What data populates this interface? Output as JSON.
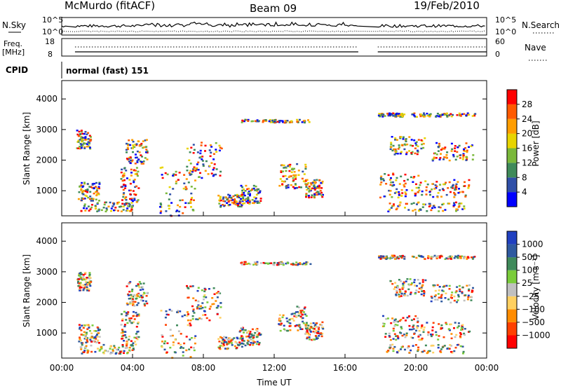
{
  "header": {
    "station": "McMurdo (fitACF)",
    "beam": "Beam 09",
    "date": "19/Feb/2010"
  },
  "status_strips": {
    "nsky_label": "N.Sky",
    "nsky_ticks": [
      "10^5",
      "10^0"
    ],
    "nsearch_label": "N.Search",
    "nsearch_ticks": [
      "10^5",
      "10^0"
    ],
    "freq_label": "Freq.",
    "freq_unit": "[MHz]",
    "freq_ticks": [
      "18",
      "8"
    ],
    "nave_label": "Nave",
    "nave_ticks": [
      "60",
      "0"
    ],
    "cpid_label": "CPID",
    "cpid_text": "normal (fast) 151"
  },
  "colors": {
    "power_scale": [
      "#0000ff",
      "#2f4fa8",
      "#3f8a5a",
      "#7ab83a",
      "#e8d400",
      "#ff9d00",
      "#ff5a00",
      "#ff0000"
    ],
    "velocity_scale": [
      "#2040c0",
      "#2f5aa0",
      "#3f8a5a",
      "#7acc3a",
      "#c0c0c0",
      "#ffd060",
      "#ff8c00",
      "#ff4000",
      "#ff0000"
    ]
  },
  "chart_data": [
    {
      "type": "heatmap",
      "panel": "power",
      "ylabel": "Slant Range [km]",
      "yticks": [
        1000,
        2000,
        3000,
        4000
      ],
      "ylim": [
        180,
        4600
      ],
      "xlim_hours": [
        0,
        24
      ],
      "data_gaps_hours": [
        [
          0.3,
          0.75
        ],
        [
          16.75,
          17.85
        ]
      ],
      "colorbar": {
        "label": "Power [dB]",
        "ticks": [
          "4",
          "8",
          "12",
          "16",
          "20",
          "24",
          "28"
        ],
        "range": [
          0,
          30
        ]
      }
    },
    {
      "type": "heatmap",
      "panel": "velocity",
      "ylabel": "Slant Range [km]",
      "yticks": [
        1000,
        2000,
        3000,
        4000
      ],
      "ylim": [
        180,
        4600
      ],
      "xlim_hours": [
        0,
        24
      ],
      "xlabel": "Time UT",
      "xticks": [
        "00:00",
        "04:00",
        "08:00",
        "12:00",
        "16:00",
        "20:00",
        "00:00"
      ],
      "colorbar": {
        "label": "Velocity [m s⁻¹]",
        "ticks": [
          "1000",
          "500",
          "100",
          "25",
          "−25",
          "−100",
          "−500",
          "−1000"
        ]
      }
    }
  ]
}
